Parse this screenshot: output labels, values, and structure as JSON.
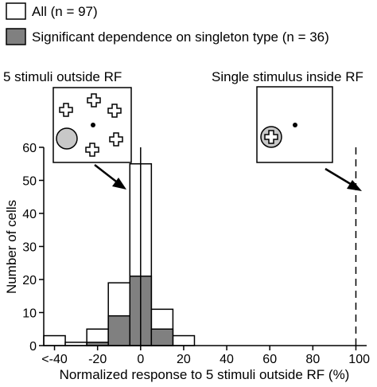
{
  "legend": {
    "all_label": "All (n = 97)",
    "sig_label": "Significant dependence on singleton type (n = 36)"
  },
  "insets": {
    "left_title": "5 stimuli outside RF",
    "right_title": "Single stimulus inside RF"
  },
  "colors": {
    "all_fill": "#ffffff",
    "sig_fill": "#808080",
    "circle_fill": "#c8c8c8",
    "line": "#000000"
  },
  "chart_data": {
    "type": "bar",
    "title": "",
    "xlabel": "Normalized response to 5 stimuli outside RF (%)",
    "ylabel": "Number of cells",
    "xlim": [
      -45,
      105
    ],
    "ylim": [
      0,
      60
    ],
    "x_tick_labels": [
      "<-40",
      "-20",
      "0",
      "20",
      "40",
      "60",
      "80",
      "100"
    ],
    "y_tick_labels": [
      "0",
      "10",
      "20",
      "30",
      "40",
      "50",
      "60"
    ],
    "bin_edges": [
      -45,
      -35,
      -25,
      -15,
      -5,
      5,
      15,
      25
    ],
    "series": [
      {
        "name": "All (n = 97)",
        "values": [
          3,
          1,
          5,
          19,
          55,
          11,
          3
        ]
      },
      {
        "name": "Significant dependence on singleton type (n = 36)",
        "values": [
          0,
          0,
          1,
          9,
          21,
          5,
          0
        ]
      }
    ],
    "reference_line_x": 0,
    "dashed_line_x": 100,
    "legend_position": "top-left"
  }
}
